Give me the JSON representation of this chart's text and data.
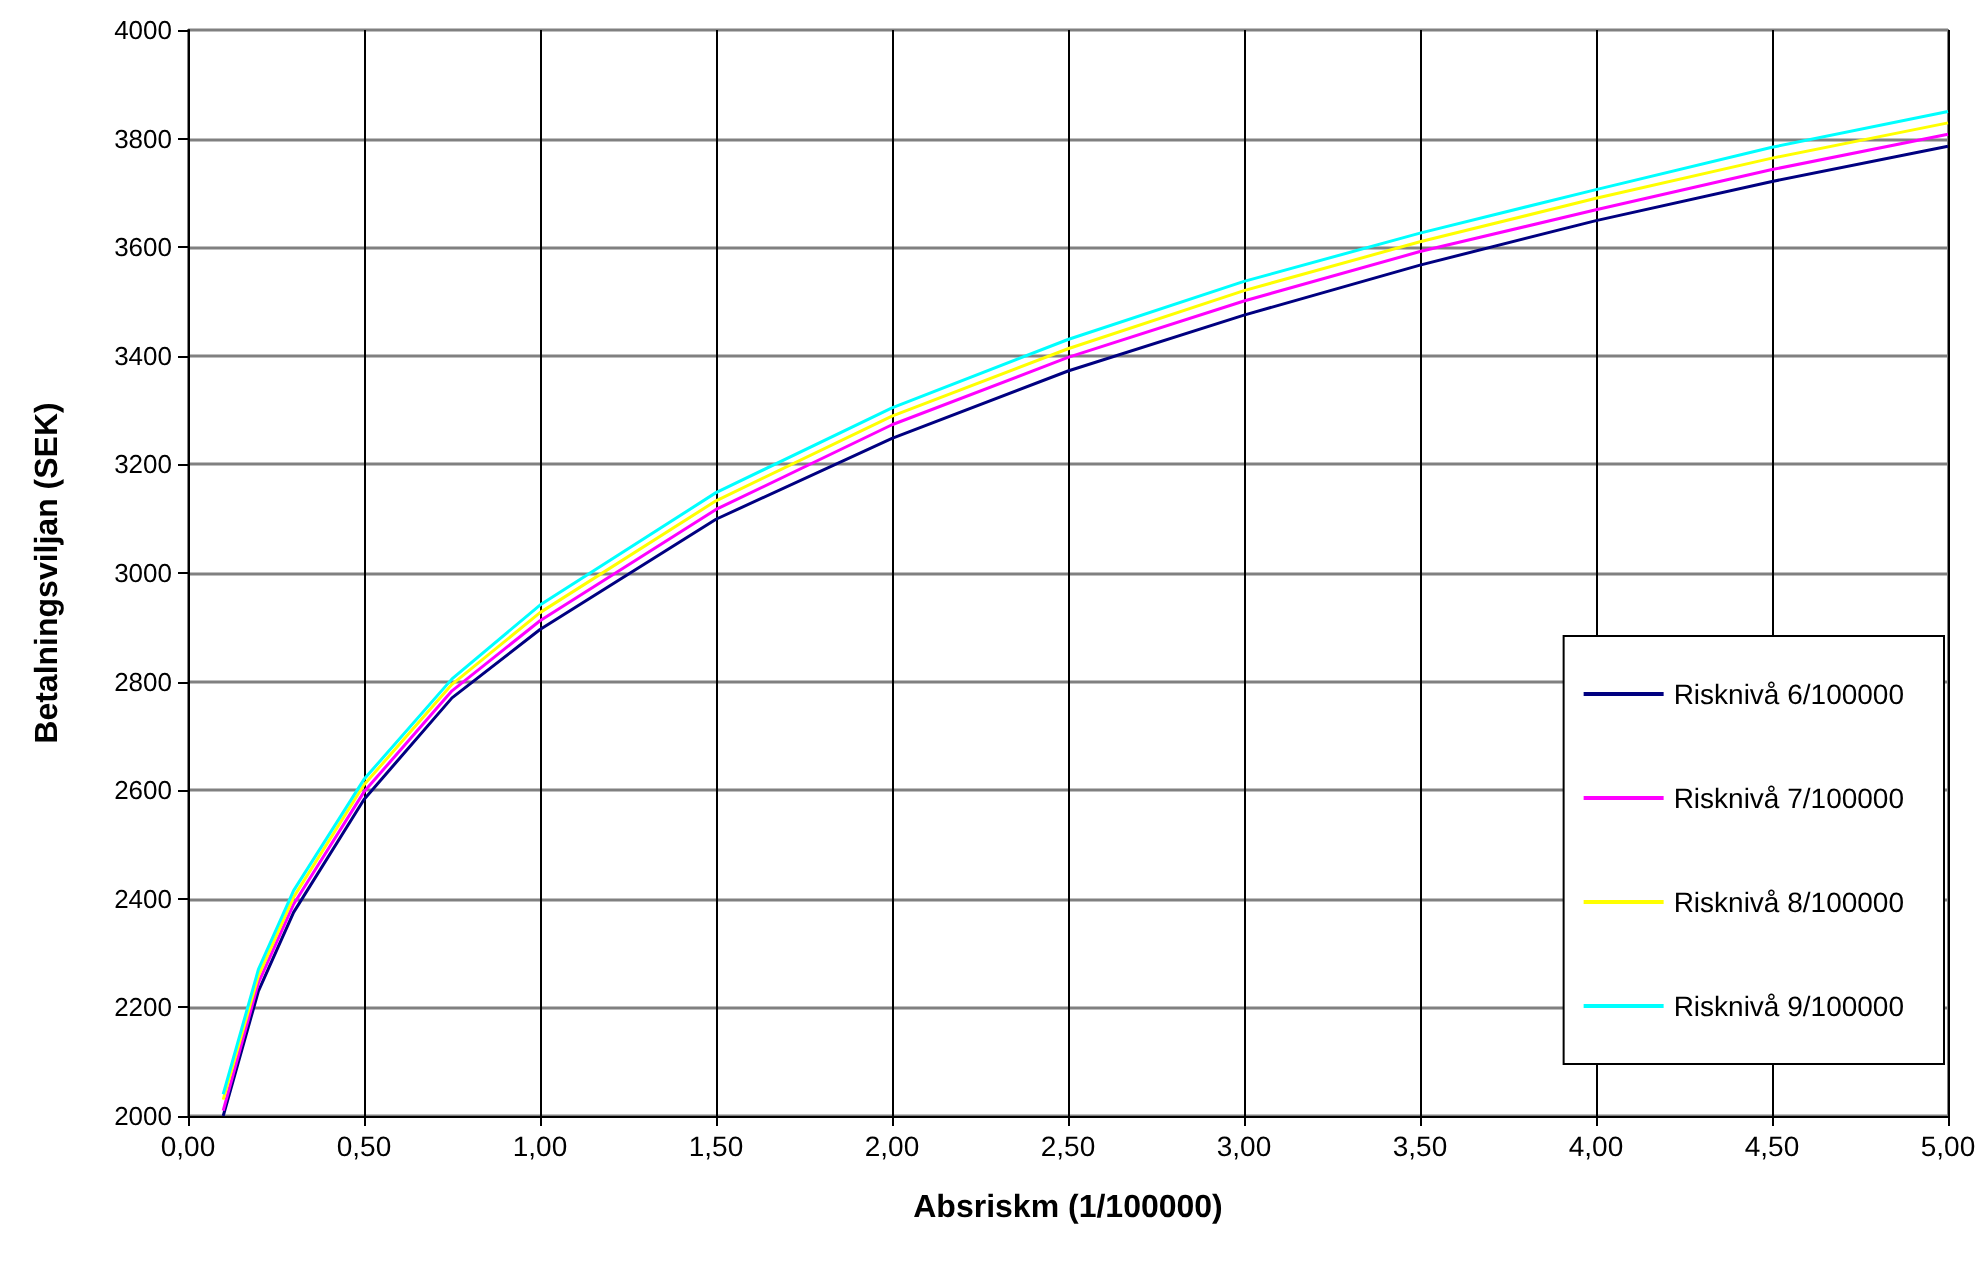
{
  "chart_data": {
    "type": "line",
    "xlabel": "Absriskm (1/100000)",
    "ylabel": "Betalningsviljan (SEK)",
    "x": [
      0.1,
      0.2,
      0.3,
      0.5,
      0.75,
      1,
      1.5,
      2,
      2.5,
      3,
      3.5,
      4,
      4.5,
      5
    ],
    "series": [
      {
        "name": "Risknivå 6/100000",
        "color": "#000080",
        "values": [
          2000,
          2230,
          2375,
          2583,
          2770,
          2896,
          3099,
          3248,
          3372,
          3475,
          3567,
          3649,
          3721,
          3786
        ]
      },
      {
        "name": "Risknivå 7/100000",
        "color": "#ff00ff",
        "values": [
          2010,
          2245,
          2390,
          2597,
          2783,
          2912,
          3117,
          3273,
          3397,
          3501,
          3592,
          3669,
          3743,
          3808
        ]
      },
      {
        "name": "Risknivå 8/100000",
        "color": "#ffff00",
        "values": [
          2030,
          2258,
          2403,
          2610,
          2795,
          2927,
          3133,
          3289,
          3413,
          3520,
          3610,
          3690,
          3764,
          3829
        ]
      },
      {
        "name": "Risknivå 9/100000",
        "color": "#00ffff",
        "values": [
          2040,
          2270,
          2415,
          2620,
          2805,
          2941,
          3148,
          3304,
          3430,
          3537,
          3626,
          3706,
          3784,
          3850
        ]
      }
    ],
    "xlim": [
      0,
      5
    ],
    "xticks": [
      {
        "value": 0,
        "label": "0,00"
      },
      {
        "value": 0.5,
        "label": "0,50"
      },
      {
        "value": 1,
        "label": "1,00"
      },
      {
        "value": 1.5,
        "label": "1,50"
      },
      {
        "value": 2,
        "label": "2,00"
      },
      {
        "value": 2.5,
        "label": "2,50"
      },
      {
        "value": 3,
        "label": "3,00"
      },
      {
        "value": 3.5,
        "label": "3,50"
      },
      {
        "value": 4,
        "label": "4,00"
      },
      {
        "value": 4.5,
        "label": "4,50"
      },
      {
        "value": 5,
        "label": "5,00"
      }
    ],
    "ylim": [
      2000,
      4000
    ],
    "yticks": [
      2000,
      2200,
      2400,
      2600,
      2800,
      3000,
      3200,
      3400,
      3600,
      3800,
      4000
    ],
    "grid": true,
    "legend": "bottom right",
    "marker": "none",
    "line_style": "solid"
  }
}
